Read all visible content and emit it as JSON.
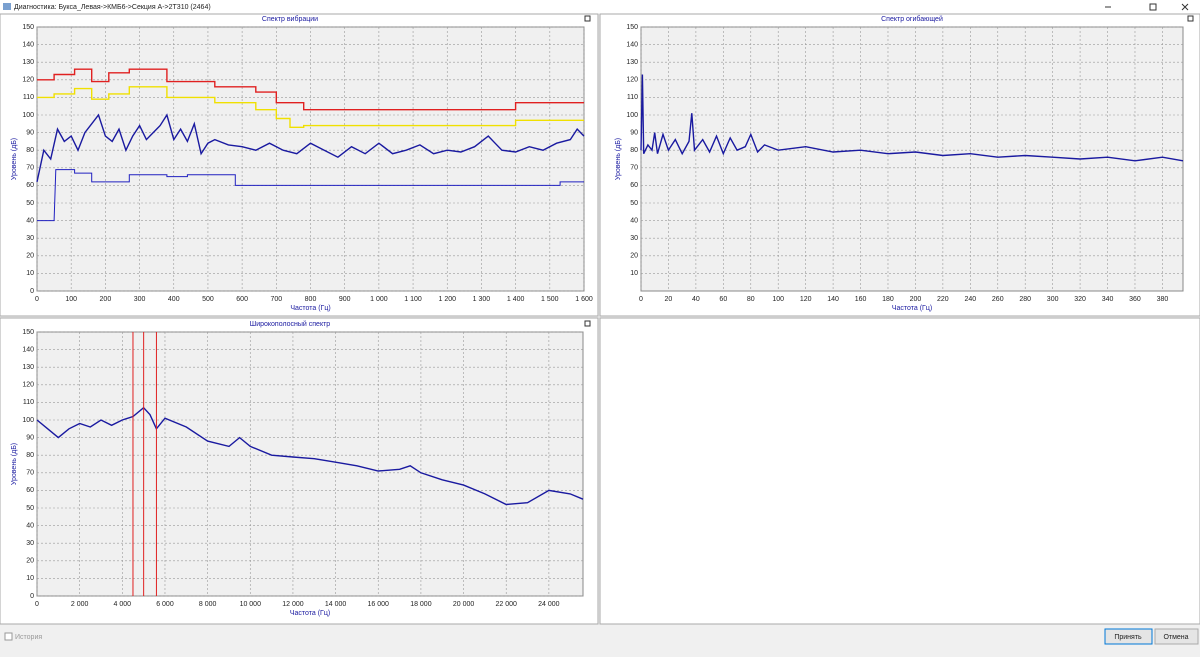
{
  "window": {
    "title": "Диагностика: Букса_Левая->КМБ6->Секция А->2Т310 (2464)",
    "history_label": "История",
    "buttons": [
      "Принять",
      "Отмена"
    ]
  },
  "chart_data": [
    {
      "type": "line",
      "title": "Спектр вибрации",
      "x_label": "Частота (Гц)",
      "y_label": "Уровень (дБ)",
      "grid": true,
      "xlim": [
        0,
        1600
      ],
      "ylim": [
        0,
        150
      ],
      "xticks": [
        0,
        100,
        200,
        300,
        400,
        500,
        600,
        700,
        800,
        900,
        {
          "value": 1000,
          "label": "1 000"
        },
        {
          "value": 1100,
          "label": "1 100"
        },
        {
          "value": 1200,
          "label": "1 200"
        },
        {
          "value": 1300,
          "label": "1 300"
        },
        {
          "value": 1400,
          "label": "1 400"
        },
        {
          "value": 1500,
          "label": "1 500"
        },
        {
          "value": 1600,
          "label": "1 600"
        }
      ],
      "yticks": [
        0,
        10,
        20,
        30,
        40,
        50,
        60,
        70,
        80,
        90,
        100,
        110,
        120,
        130,
        140,
        150
      ],
      "series": [
        {
          "color": "#e02020",
          "x": [
            0,
            50,
            50,
            110,
            110,
            160,
            160,
            210,
            210,
            270,
            270,
            380,
            380,
            520,
            520,
            640,
            640,
            700,
            700,
            780,
            780,
            1340,
            1340,
            1400,
            1400,
            1600
          ],
          "values": [
            120,
            120,
            123,
            123,
            126,
            126,
            119,
            119,
            124,
            124,
            126,
            126,
            119,
            119,
            116,
            116,
            113,
            113,
            107,
            107,
            103,
            103,
            103,
            103,
            107,
            107
          ]
        },
        {
          "color": "#f0e000",
          "x": [
            0,
            50,
            50,
            110,
            110,
            160,
            160,
            210,
            210,
            270,
            270,
            380,
            380,
            520,
            520,
            640,
            640,
            700,
            700,
            740,
            740,
            780,
            780,
            1340,
            1340,
            1400,
            1400,
            1600
          ],
          "values": [
            110,
            110,
            112,
            112,
            115,
            115,
            109,
            109,
            112,
            112,
            116,
            116,
            110,
            110,
            107,
            107,
            103,
            103,
            98,
            98,
            93,
            93,
            94,
            94,
            94,
            94,
            97,
            97
          ]
        },
        {
          "color": "#1a1aa0",
          "x": [
            0,
            20,
            40,
            60,
            80,
            100,
            120,
            140,
            160,
            180,
            200,
            220,
            240,
            260,
            280,
            300,
            320,
            340,
            360,
            380,
            400,
            420,
            440,
            460,
            480,
            500,
            520,
            560,
            600,
            640,
            680,
            720,
            760,
            800,
            840,
            880,
            920,
            960,
            1000,
            1040,
            1080,
            1120,
            1160,
            1200,
            1240,
            1280,
            1320,
            1340,
            1360,
            1400,
            1440,
            1480,
            1520,
            1560,
            1580,
            1600
          ],
          "values": [
            62,
            80,
            75,
            92,
            85,
            88,
            80,
            90,
            95,
            100,
            88,
            85,
            92,
            80,
            88,
            94,
            86,
            90,
            94,
            100,
            86,
            92,
            85,
            95,
            78,
            84,
            86,
            83,
            82,
            80,
            84,
            80,
            78,
            84,
            80,
            76,
            82,
            78,
            84,
            78,
            80,
            83,
            78,
            80,
            79,
            82,
            88,
            84,
            80,
            79,
            82,
            80,
            84,
            86,
            92,
            88
          ]
        },
        {
          "color": "#2020c0",
          "x": [
            0,
            50,
            55,
            110,
            110,
            160,
            160,
            270,
            270,
            380,
            380,
            440,
            440,
            580,
            580,
            1530,
            1530,
            1600
          ],
          "values": [
            40,
            40,
            69,
            69,
            67,
            67,
            62,
            62,
            66,
            66,
            65,
            65,
            66,
            66,
            60,
            60,
            62,
            62
          ]
        }
      ]
    },
    {
      "type": "line",
      "title": "Спектр огибающей",
      "x_label": "Частота (Гц)",
      "y_label": "Уровень (дБ)",
      "grid": true,
      "xlim": [
        0,
        395
      ],
      "ylim": [
        0,
        150
      ],
      "xticks": [
        0,
        20,
        40,
        60,
        80,
        100,
        120,
        140,
        160,
        180,
        200,
        220,
        240,
        260,
        280,
        300,
        320,
        340,
        360,
        380
      ],
      "yticks": [
        10,
        20,
        30,
        40,
        50,
        60,
        70,
        80,
        90,
        100,
        110,
        120,
        130,
        140,
        150
      ],
      "series": [
        {
          "color": "#1a1aa0",
          "x": [
            0,
            1,
            2,
            5,
            8,
            10,
            12,
            16,
            20,
            25,
            30,
            35,
            37,
            39,
            45,
            50,
            55,
            60,
            65,
            70,
            76,
            80,
            85,
            90,
            100,
            120,
            140,
            160,
            180,
            200,
            220,
            240,
            260,
            280,
            300,
            320,
            340,
            360,
            380,
            395
          ],
          "values": [
            80,
            123,
            78,
            83,
            80,
            90,
            78,
            89,
            80,
            86,
            78,
            85,
            101,
            80,
            86,
            79,
            88,
            78,
            87,
            80,
            82,
            89,
            79,
            83,
            80,
            82,
            79,
            80,
            78,
            79,
            77,
            78,
            76,
            77,
            76,
            75,
            76,
            74,
            76,
            74
          ]
        }
      ]
    },
    {
      "type": "line",
      "title": "Широкополосный спектр",
      "x_label": "Частота (Гц)",
      "y_label": "Уровень (дБ)",
      "grid": true,
      "xlim": [
        0,
        25600
      ],
      "ylim": [
        0,
        150
      ],
      "xticks": [
        0,
        {
          "value": 2000,
          "label": "2 000"
        },
        {
          "value": 4000,
          "label": "4 000"
        },
        {
          "value": 6000,
          "label": "6 000"
        },
        {
          "value": 8000,
          "label": "8 000"
        },
        {
          "value": 10000,
          "label": "10 000"
        },
        {
          "value": 12000,
          "label": "12 000"
        },
        {
          "value": 14000,
          "label": "14 000"
        },
        {
          "value": 16000,
          "label": "16 000"
        },
        {
          "value": 18000,
          "label": "18 000"
        },
        {
          "value": 20000,
          "label": "20 000"
        },
        {
          "value": 22000,
          "label": "22 000"
        },
        {
          "value": 24000,
          "label": "24 000"
        }
      ],
      "yticks": [
        0,
        10,
        20,
        30,
        40,
        50,
        60,
        70,
        80,
        90,
        100,
        110,
        120,
        130,
        140,
        150
      ],
      "markers": {
        "color": "#e02020",
        "x": [
          4500,
          5000,
          5600
        ]
      },
      "series": [
        {
          "color": "#1a1aa0",
          "x": [
            0,
            500,
            1000,
            1500,
            2000,
            2500,
            3000,
            3500,
            4000,
            4500,
            5000,
            5300,
            5600,
            6000,
            7000,
            8000,
            9000,
            9500,
            10000,
            11000,
            12000,
            13000,
            14000,
            15000,
            16000,
            17000,
            17500,
            18000,
            19000,
            20000,
            21000,
            22000,
            23000,
            24000,
            25000,
            25600
          ],
          "values": [
            100,
            95,
            90,
            95,
            98,
            96,
            100,
            97,
            100,
            102,
            107,
            103,
            95,
            101,
            96,
            88,
            85,
            90,
            85,
            80,
            79,
            78,
            76,
            74,
            71,
            72,
            74,
            70,
            66,
            63,
            58,
            52,
            53,
            60,
            58,
            55
          ]
        }
      ]
    }
  ]
}
